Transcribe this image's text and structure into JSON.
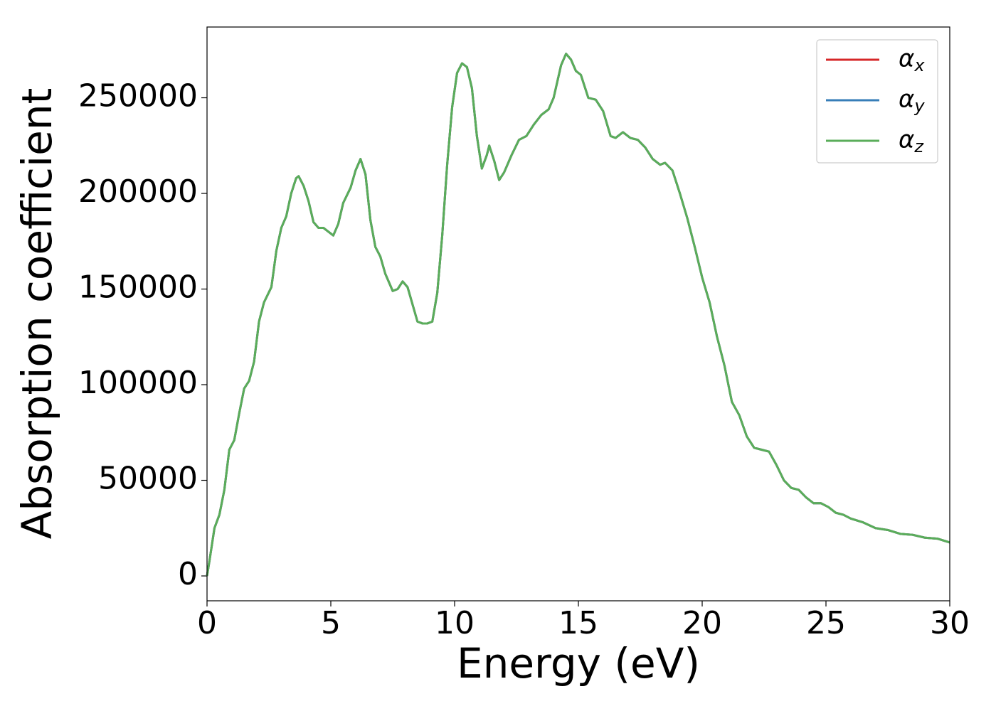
{
  "chart_data": {
    "type": "line",
    "xlabel": "Energy (eV)",
    "ylabel": "Absorption coefficient",
    "x": [
      0,
      0.1,
      0.3,
      0.5,
      0.7,
      0.9,
      1.1,
      1.3,
      1.5,
      1.7,
      1.9,
      2.1,
      2.3,
      2.6,
      2.8,
      3.0,
      3.2,
      3.4,
      3.6,
      3.7,
      3.9,
      4.1,
      4.3,
      4.5,
      4.7,
      4.9,
      5.1,
      5.3,
      5.5,
      5.8,
      6.0,
      6.2,
      6.4,
      6.6,
      6.8,
      7.0,
      7.2,
      7.5,
      7.7,
      7.9,
      8.1,
      8.3,
      8.5,
      8.7,
      8.9,
      9.1,
      9.3,
      9.5,
      9.7,
      9.9,
      10.1,
      10.3,
      10.5,
      10.7,
      10.9,
      11.1,
      11.3,
      11.4,
      11.6,
      11.8,
      12.0,
      12.3,
      12.6,
      12.9,
      13.2,
      13.5,
      13.8,
      14.0,
      14.3,
      14.5,
      14.7,
      14.9,
      15.1,
      15.4,
      15.7,
      16.0,
      16.3,
      16.5,
      16.8,
      17.1,
      17.4,
      17.7,
      18.0,
      18.3,
      18.5,
      18.8,
      19.1,
      19.4,
      19.7,
      20.0,
      20.3,
      20.6,
      20.9,
      21.2,
      21.5,
      21.8,
      22.1,
      22.4,
      22.7,
      23.0,
      23.3,
      23.6,
      23.9,
      24.2,
      24.5,
      24.8,
      25.1,
      25.4,
      25.7,
      26.0,
      26.5,
      27.0,
      27.5,
      28.0,
      28.5,
      29.0,
      29.5,
      30.0
    ],
    "series": [
      {
        "name": "αx",
        "color": "#d62728",
        "values": [
          0,
          8000,
          25000,
          32000,
          45000,
          66000,
          71000,
          85000,
          98000,
          102000,
          112000,
          133000,
          143000,
          151000,
          170000,
          182000,
          188000,
          200000,
          208000,
          209000,
          204000,
          196000,
          185000,
          182000,
          182000,
          180000,
          178000,
          184000,
          195000,
          203000,
          212000,
          218000,
          210000,
          186000,
          172000,
          167000,
          158000,
          149000,
          150000,
          154000,
          151000,
          142000,
          133000,
          132000,
          132000,
          133000,
          148000,
          178000,
          215000,
          245000,
          263000,
          268000,
          266000,
          255000,
          230000,
          213000,
          220000,
          225000,
          217000,
          207000,
          211000,
          220000,
          228000,
          230000,
          236000,
          241000,
          244000,
          250000,
          267000,
          273000,
          270000,
          264000,
          262000,
          250000,
          249000,
          243000,
          230000,
          229000,
          232000,
          229000,
          228000,
          224000,
          218000,
          215000,
          216000,
          212000,
          200000,
          187000,
          172000,
          156000,
          143000,
          125000,
          110000,
          91000,
          84000,
          73000,
          67000,
          66000,
          65000,
          58000,
          50000,
          46000,
          45000,
          41000,
          38000,
          38000,
          36000,
          33000,
          32000,
          30000,
          28000,
          25000,
          24000,
          22000,
          21500,
          20000,
          19500,
          17500
        ]
      },
      {
        "name": "αy",
        "color": "#377eb8",
        "values": [
          0,
          8000,
          25000,
          32000,
          45000,
          66000,
          71000,
          85000,
          98000,
          102000,
          112000,
          133000,
          143000,
          151000,
          170000,
          182000,
          188000,
          200000,
          208000,
          209000,
          204000,
          196000,
          185000,
          182000,
          182000,
          180000,
          178000,
          184000,
          195000,
          203000,
          212000,
          218000,
          210000,
          186000,
          172000,
          167000,
          158000,
          149000,
          150000,
          154000,
          151000,
          142000,
          133000,
          132000,
          132000,
          133000,
          148000,
          178000,
          215000,
          245000,
          263000,
          268000,
          266000,
          255000,
          230000,
          213000,
          220000,
          225000,
          217000,
          207000,
          211000,
          220000,
          228000,
          230000,
          236000,
          241000,
          244000,
          250000,
          267000,
          273000,
          270000,
          264000,
          262000,
          250000,
          249000,
          243000,
          230000,
          229000,
          232000,
          229000,
          228000,
          224000,
          218000,
          215000,
          216000,
          212000,
          200000,
          187000,
          172000,
          156000,
          143000,
          125000,
          110000,
          91000,
          84000,
          73000,
          67000,
          66000,
          65000,
          58000,
          50000,
          46000,
          45000,
          41000,
          38000,
          38000,
          36000,
          33000,
          32000,
          30000,
          28000,
          25000,
          24000,
          22000,
          21500,
          20000,
          19500,
          17500
        ]
      },
      {
        "name": "αz",
        "color": "#5aad5a",
        "values": [
          0,
          8000,
          25000,
          32000,
          45000,
          66000,
          71000,
          85000,
          98000,
          102000,
          112000,
          133000,
          143000,
          151000,
          170000,
          182000,
          188000,
          200000,
          208000,
          209000,
          204000,
          196000,
          185000,
          182000,
          182000,
          180000,
          178000,
          184000,
          195000,
          203000,
          212000,
          218000,
          210000,
          186000,
          172000,
          167000,
          158000,
          149000,
          150000,
          154000,
          151000,
          142000,
          133000,
          132000,
          132000,
          133000,
          148000,
          178000,
          215000,
          245000,
          263000,
          268000,
          266000,
          255000,
          230000,
          213000,
          220000,
          225000,
          217000,
          207000,
          211000,
          220000,
          228000,
          230000,
          236000,
          241000,
          244000,
          250000,
          267000,
          273000,
          270000,
          264000,
          262000,
          250000,
          249000,
          243000,
          230000,
          229000,
          232000,
          229000,
          228000,
          224000,
          218000,
          215000,
          216000,
          212000,
          200000,
          187000,
          172000,
          156000,
          143000,
          125000,
          110000,
          91000,
          84000,
          73000,
          67000,
          66000,
          65000,
          58000,
          50000,
          46000,
          45000,
          41000,
          38000,
          38000,
          36000,
          33000,
          32000,
          30000,
          28000,
          25000,
          24000,
          22000,
          21500,
          20000,
          19500,
          17500
        ]
      }
    ],
    "xlim": [
      0,
      30
    ],
    "xticks": [
      0,
      5,
      10,
      15,
      20,
      25,
      30
    ],
    "ylim": [
      -13000,
      287000
    ],
    "yticks": [
      0,
      50000,
      100000,
      150000,
      200000,
      250000
    ],
    "grid": false,
    "legend": "upper right"
  }
}
